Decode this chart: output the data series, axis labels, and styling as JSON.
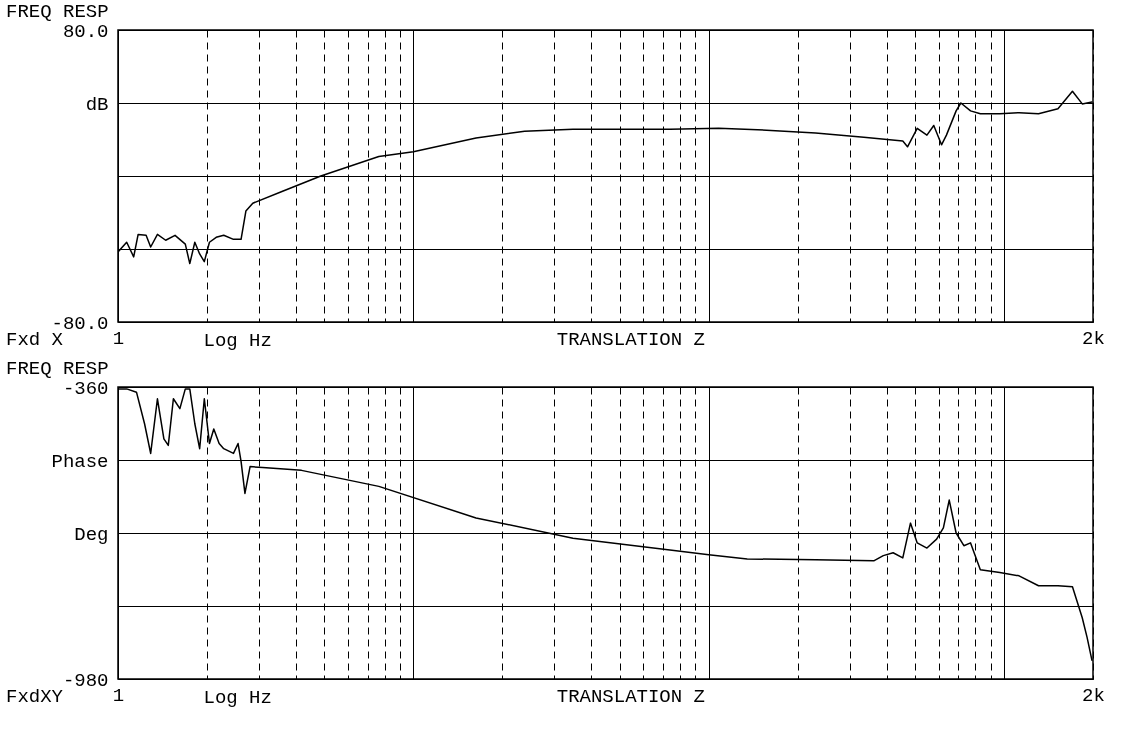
{
  "chart_data": [
    {
      "type": "line",
      "title": "FREQ RESP",
      "xlabel": "Log Hz",
      "annotations": [
        "Fxd X",
        "TRANSLATION Z"
      ],
      "log": "x",
      "grid": true,
      "marker": "none",
      "line_style": "solid",
      "xlim": [
        1,
        2000
      ],
      "xticks": [
        {
          "value": 1,
          "label": "1"
        },
        {
          "value": 2,
          "label": null
        },
        {
          "value": 3,
          "label": null
        },
        {
          "value": 4,
          "label": null
        },
        {
          "value": 5,
          "label": null
        },
        {
          "value": 6,
          "label": null
        },
        {
          "value": 7,
          "label": null
        },
        {
          "value": 8,
          "label": null
        },
        {
          "value": 9,
          "label": null
        },
        {
          "value": 10,
          "label": null
        },
        {
          "value": 20,
          "label": null
        },
        {
          "value": 30,
          "label": null
        },
        {
          "value": 40,
          "label": null
        },
        {
          "value": 50,
          "label": null
        },
        {
          "value": 60,
          "label": null
        },
        {
          "value": 70,
          "label": null
        },
        {
          "value": 80,
          "label": null
        },
        {
          "value": 90,
          "label": null
        },
        {
          "value": 100,
          "label": null
        },
        {
          "value": 200,
          "label": null
        },
        {
          "value": 300,
          "label": null
        },
        {
          "value": 400,
          "label": null
        },
        {
          "value": 500,
          "label": null
        },
        {
          "value": 600,
          "label": null
        },
        {
          "value": 700,
          "label": null
        },
        {
          "value": 800,
          "label": null
        },
        {
          "value": 900,
          "label": null
        },
        {
          "value": 1000,
          "label": null
        },
        {
          "value": 2000,
          "label": "2k"
        }
      ],
      "ylim": [
        -80,
        80
      ],
      "yticks": [
        {
          "value": 80,
          "label": "80.0"
        },
        {
          "value": 40,
          "label": "dB"
        },
        {
          "value": 0,
          "label": null
        },
        {
          "value": -40,
          "label": null
        },
        {
          "value": -80,
          "label": "-80.0"
        }
      ],
      "series": [
        {
          "color": "#000000",
          "x": [
            1,
            1.07,
            1.13,
            1.17,
            1.245,
            1.29,
            1.36,
            1.45,
            1.56,
            1.69,
            1.75,
            1.82,
            1.89,
            1.96,
            2.04,
            2.15,
            2.28,
            2.46,
            2.61,
            2.71,
            2.86,
            3.59,
            4.86,
            7.64,
            10,
            16.3,
            23.8,
            34.7,
            50.6,
            73.9,
            108,
            157,
            230,
            335,
            454,
            471,
            508,
            548,
            578,
            614,
            638,
            688,
            714,
            770,
            831,
            967,
            1124,
            1308,
            1522,
            1704,
            1839,
            1983
          ],
          "values": [
            -41.6,
            -36.3,
            -44.3,
            -32,
            -32.5,
            -38.9,
            -32,
            -35.2,
            -32.5,
            -37.3,
            -48,
            -36.3,
            -42.7,
            -46.9,
            -36.3,
            -33.6,
            -32.5,
            -34.7,
            -34.7,
            -19.2,
            -14.9,
            -8.5,
            0,
            10.7,
            13.3,
            20.8,
            24.5,
            25.6,
            25.6,
            25.6,
            26.1,
            25.1,
            23.5,
            21.3,
            19.2,
            16,
            26.1,
            22.4,
            27.7,
            17.1,
            22.4,
            35.7,
            40,
            35.7,
            34.1,
            34.1,
            34.7,
            34.1,
            36.8,
            46.4,
            39.5,
            40.5
          ]
        }
      ]
    },
    {
      "type": "line",
      "title": "FREQ RESP",
      "xlabel": "Log Hz",
      "annotations": [
        "FxdXY",
        "TRANSLATION Z"
      ],
      "log": "x",
      "grid": true,
      "marker": "none",
      "line_style": "solid",
      "xlim": [
        1,
        2000
      ],
      "xticks": [
        {
          "value": 1,
          "label": "1"
        },
        {
          "value": 2,
          "label": null
        },
        {
          "value": 3,
          "label": null
        },
        {
          "value": 4,
          "label": null
        },
        {
          "value": 5,
          "label": null
        },
        {
          "value": 6,
          "label": null
        },
        {
          "value": 7,
          "label": null
        },
        {
          "value": 8,
          "label": null
        },
        {
          "value": 9,
          "label": null
        },
        {
          "value": 10,
          "label": null
        },
        {
          "value": 20,
          "label": null
        },
        {
          "value": 30,
          "label": null
        },
        {
          "value": 40,
          "label": null
        },
        {
          "value": 50,
          "label": null
        },
        {
          "value": 60,
          "label": null
        },
        {
          "value": 70,
          "label": null
        },
        {
          "value": 80,
          "label": null
        },
        {
          "value": 90,
          "label": null
        },
        {
          "value": 100,
          "label": null
        },
        {
          "value": 200,
          "label": null
        },
        {
          "value": 300,
          "label": null
        },
        {
          "value": 400,
          "label": null
        },
        {
          "value": 500,
          "label": null
        },
        {
          "value": 600,
          "label": null
        },
        {
          "value": 700,
          "label": null
        },
        {
          "value": 800,
          "label": null
        },
        {
          "value": 900,
          "label": null
        },
        {
          "value": 1000,
          "label": null
        },
        {
          "value": 2000,
          "label": "2k"
        }
      ],
      "ylim": [
        -980,
        -360
      ],
      "yticks": [
        -360,
        {
          "value": -515,
          "label": "Phase"
        },
        {
          "value": -670,
          "label": "Deg"
        },
        {
          "value": -825,
          "label": null
        },
        -980
      ],
      "series": [
        {
          "color": "#000000",
          "x": [
            1,
            1.07,
            1.155,
            1.23,
            1.29,
            1.36,
            1.43,
            1.48,
            1.54,
            1.62,
            1.69,
            1.75,
            1.82,
            1.89,
            1.96,
            2.04,
            2.11,
            2.2,
            2.28,
            2.46,
            2.55,
            2.61,
            2.69,
            2.8,
            3.09,
            4.18,
            7.64,
            16.3,
            34.7,
            73.9,
            100,
            135,
            230,
            362,
            390,
            421,
            454,
            482,
            508,
            548,
            591,
            623,
            652,
            688,
            731,
            770,
            831,
            967,
            1124,
            1308,
            1522,
            1704,
            1839,
            1909,
            1983
          ],
          "values": [
            -364,
            -364,
            -371,
            -438,
            -501,
            -385,
            -470,
            -484,
            -385,
            -406,
            -364,
            -364,
            -438,
            -491,
            -385,
            -480,
            -449,
            -480,
            -491,
            -501,
            -480,
            -518,
            -586,
            -529,
            -531,
            -537,
            -571,
            -638,
            -681,
            -706,
            -716,
            -725,
            -727,
            -729,
            -718,
            -712,
            -723,
            -649,
            -691,
            -702,
            -683,
            -659,
            -600,
            -670,
            -697,
            -691,
            -748,
            -754,
            -761,
            -782,
            -782,
            -784,
            -850,
            -891,
            -940
          ]
        }
      ]
    }
  ]
}
